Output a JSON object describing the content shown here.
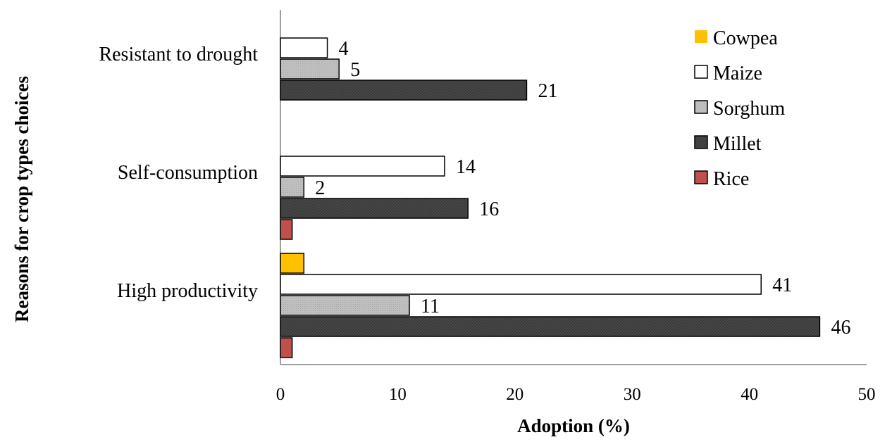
{
  "chart_data": {
    "type": "bar",
    "orientation": "horizontal",
    "xlabel": "Adoption (%)",
    "ylabel": "Reasons for crop types choices",
    "xlim": [
      0,
      50
    ],
    "xticks": [
      0,
      10,
      20,
      30,
      40,
      50
    ],
    "grid": false,
    "legend_position": "top-right",
    "categories": [
      "Resistant to drought",
      "Self-consumption",
      "High productivity"
    ],
    "series": [
      {
        "name": "Cowpea",
        "color": "#FFC000",
        "pattern": "solid",
        "values": [
          null,
          null,
          2
        ],
        "labels": [
          null,
          null,
          null
        ]
      },
      {
        "name": "Maize",
        "color": "#FFFFFF",
        "pattern": "solid",
        "values": [
          4,
          14,
          41
        ],
        "labels": [
          "4",
          "14",
          "41"
        ]
      },
      {
        "name": "Sorghum",
        "color": "#BFBFBF",
        "pattern": "dotted",
        "values": [
          5,
          2,
          11
        ],
        "labels": [
          "5",
          "2",
          "11"
        ]
      },
      {
        "name": "Millet",
        "color": "#3A3A3A",
        "pattern": "hatched",
        "values": [
          21,
          16,
          46
        ],
        "labels": [
          "21",
          "16",
          "46"
        ]
      },
      {
        "name": "Rice",
        "color": "#C0504D",
        "pattern": "solid",
        "values": [
          null,
          1,
          1
        ],
        "labels": [
          null,
          null,
          null
        ]
      }
    ]
  }
}
